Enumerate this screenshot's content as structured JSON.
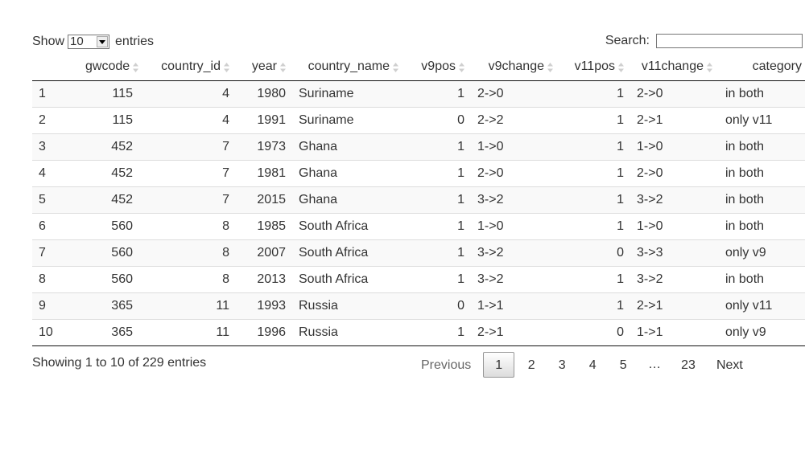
{
  "length_menu": {
    "show_label": "Show",
    "entries_label": "entries",
    "selected": "10"
  },
  "search": {
    "label": "Search:",
    "value": ""
  },
  "table": {
    "columns": [
      "",
      "gwcode",
      "country_id",
      "year",
      "country_name",
      "v9pos",
      "v9change",
      "v11pos",
      "v11change",
      "category"
    ],
    "rows": [
      [
        "1",
        "115",
        "4",
        "1980",
        "Suriname",
        "1",
        "2->0",
        "1",
        "2->0",
        "in both"
      ],
      [
        "2",
        "115",
        "4",
        "1991",
        "Suriname",
        "0",
        "2->2",
        "1",
        "2->1",
        "only v11"
      ],
      [
        "3",
        "452",
        "7",
        "1973",
        "Ghana",
        "1",
        "1->0",
        "1",
        "1->0",
        "in both"
      ],
      [
        "4",
        "452",
        "7",
        "1981",
        "Ghana",
        "1",
        "2->0",
        "1",
        "2->0",
        "in both"
      ],
      [
        "5",
        "452",
        "7",
        "2015",
        "Ghana",
        "1",
        "3->2",
        "1",
        "3->2",
        "in both"
      ],
      [
        "6",
        "560",
        "8",
        "1985",
        "South Africa",
        "1",
        "1->0",
        "1",
        "1->0",
        "in both"
      ],
      [
        "7",
        "560",
        "8",
        "2007",
        "South Africa",
        "1",
        "3->2",
        "0",
        "3->3",
        "only v9"
      ],
      [
        "8",
        "560",
        "8",
        "2013",
        "South Africa",
        "1",
        "3->2",
        "1",
        "3->2",
        "in both"
      ],
      [
        "9",
        "365",
        "11",
        "1993",
        "Russia",
        "0",
        "1->1",
        "1",
        "2->1",
        "only v11"
      ],
      [
        "10",
        "365",
        "11",
        "1996",
        "Russia",
        "1",
        "2->1",
        "0",
        "1->1",
        "only v9"
      ]
    ]
  },
  "info": "Showing 1 to 10 of 229 entries",
  "pagination": {
    "previous": "Previous",
    "pages": [
      "1",
      "2",
      "3",
      "4",
      "5"
    ],
    "ellipsis": "…",
    "last": "23",
    "next": "Next",
    "current": "1"
  },
  "icons": {
    "sort": "sort-both-icon",
    "dropdown": "dropdown-arrow-icon"
  }
}
